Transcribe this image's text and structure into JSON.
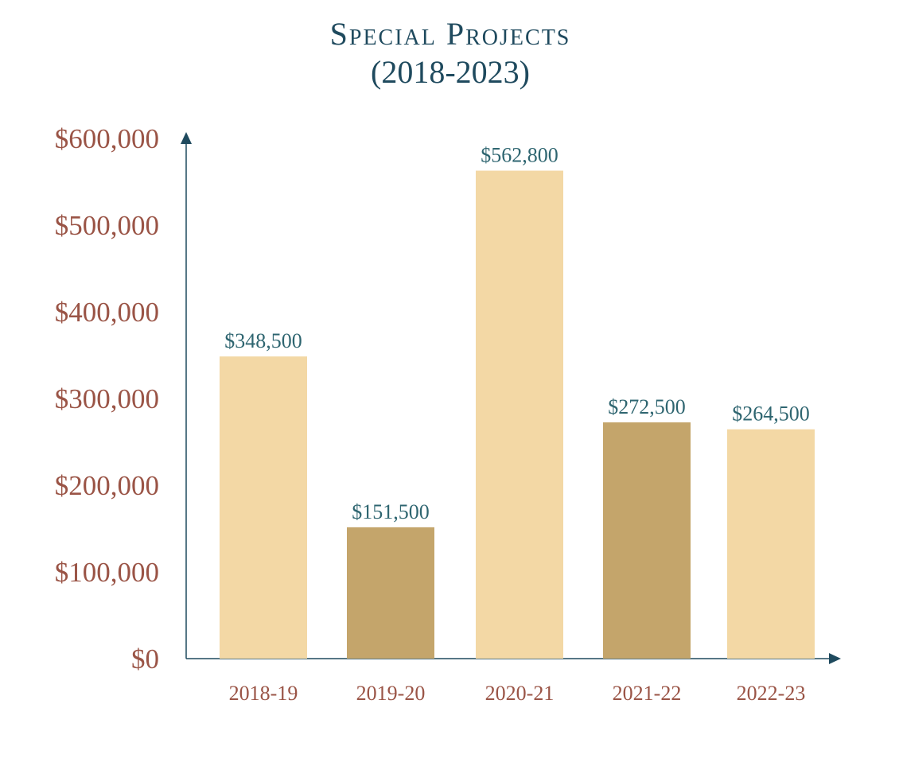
{
  "chart_data": {
    "type": "bar",
    "title": "Special Projects",
    "subtitle": "(2018-2023)",
    "xlabel": "",
    "ylabel": "",
    "categories": [
      "2018-19",
      "2019-20",
      "2020-21",
      "2021-22",
      "2022-23"
    ],
    "values": [
      348500,
      151500,
      562800,
      272500,
      264500
    ],
    "value_labels": [
      "$348,500",
      "$151,500",
      "$562,800",
      "$272,500",
      "$264,500"
    ],
    "ylim": [
      0,
      600000
    ],
    "yticks": [
      0,
      100000,
      200000,
      300000,
      400000,
      500000,
      600000
    ],
    "ytick_labels": [
      "$0",
      "$100,000",
      "$200,000",
      "$300,000",
      "$400,000",
      "$500,000",
      "$600,000"
    ],
    "grid": false,
    "legend": "none",
    "bar_colors": [
      "#f3d8a5",
      "#c4a56b",
      "#f3d8a5",
      "#c4a56b",
      "#f3d8a5"
    ]
  },
  "colors": {
    "title": "#1f4a5e",
    "tick_labels": "#9a5446",
    "data_labels": "#2e6570",
    "axis": "#1f4a5e"
  }
}
